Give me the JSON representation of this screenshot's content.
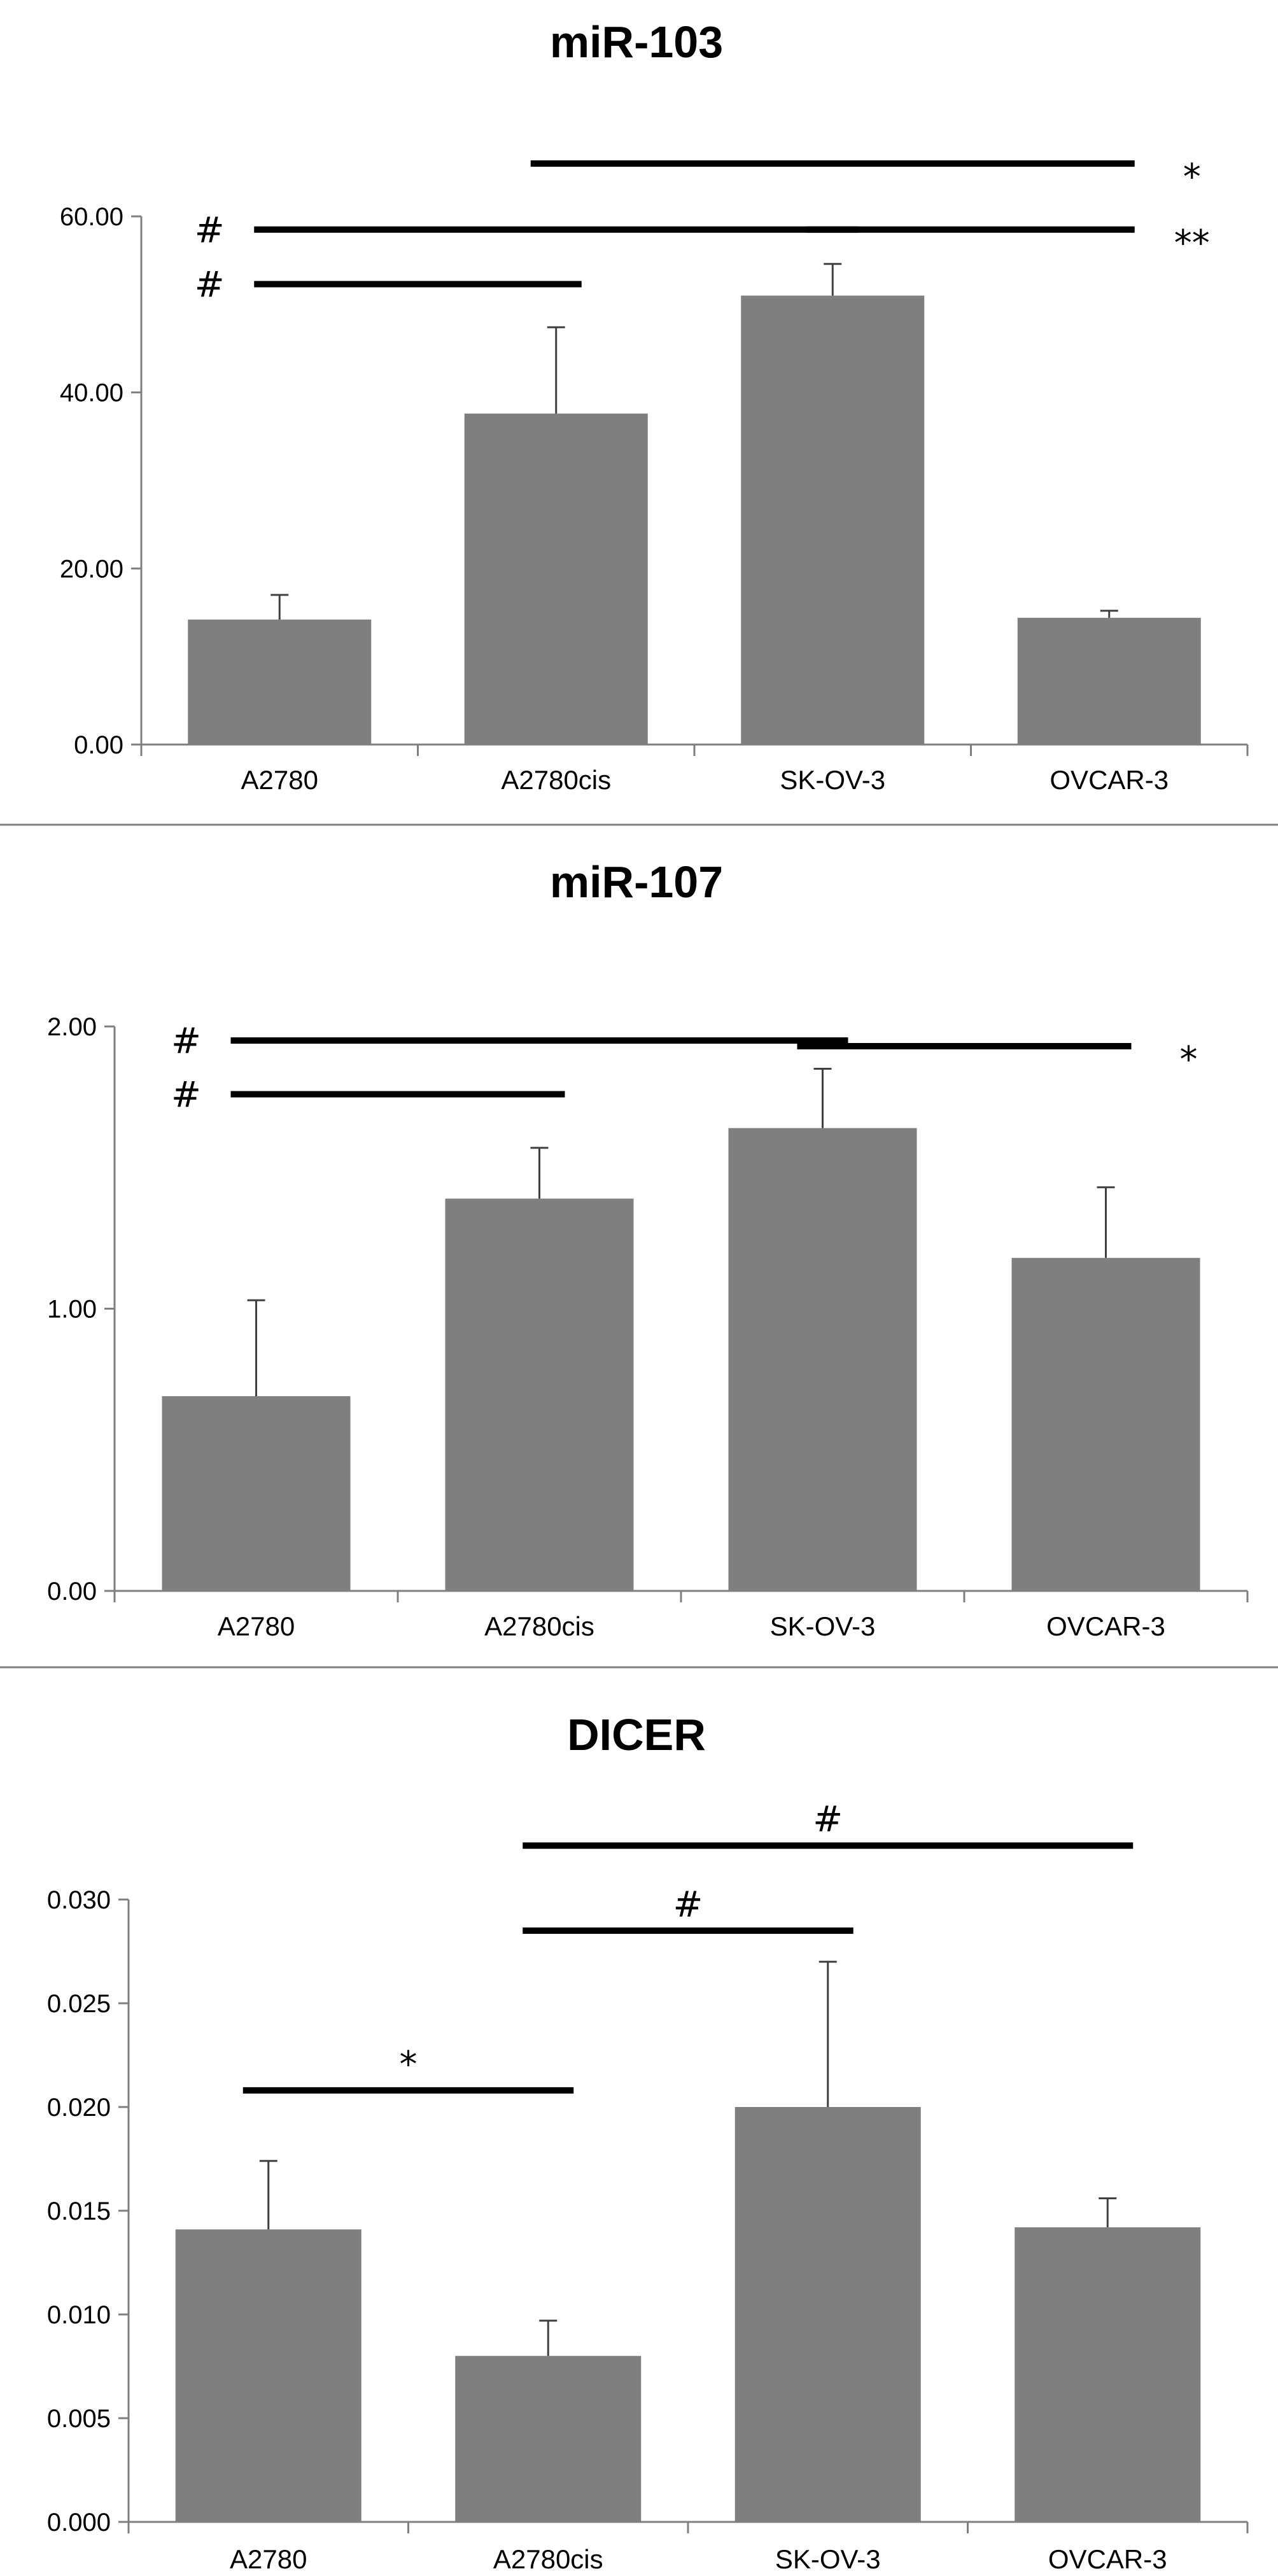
{
  "chart_data": [
    {
      "type": "bar",
      "title": "miR-103",
      "categories": [
        "A2780",
        "A2780cis",
        "SK-OV-3",
        "OVCAR-3"
      ],
      "values": [
        14.2,
        37.6,
        51.0,
        14.4
      ],
      "errors": [
        2.8,
        9.8,
        3.6,
        0.8
      ],
      "ylim": [
        0,
        60
      ],
      "yticks": [
        0,
        20,
        40,
        60
      ],
      "ytick_labels": [
        "0.00",
        "20.00",
        "40.00",
        "60.00"
      ],
      "xlabel": "",
      "ylabel": "",
      "significance": [
        {
          "from": 1,
          "to": 3,
          "level": 66,
          "label": "*",
          "label_side": "right"
        },
        {
          "from": 0,
          "to": 2,
          "level": 58.5,
          "label": "#",
          "label_side": "left"
        },
        {
          "from": 2,
          "to": 3,
          "level": 58.5,
          "label": "**",
          "label_side": "right"
        },
        {
          "from": 0,
          "to": 1,
          "level": 52.3,
          "label": "#",
          "label_side": "left"
        }
      ]
    },
    {
      "type": "bar",
      "title": "miR-107",
      "categories": [
        "A2780",
        "A2780cis",
        "SK-OV-3",
        "OVCAR-3"
      ],
      "values": [
        0.69,
        1.39,
        1.64,
        1.18
      ],
      "errors": [
        0.34,
        0.18,
        0.21,
        0.25
      ],
      "ylim": [
        0,
        2
      ],
      "yticks": [
        0,
        1,
        2
      ],
      "ytick_labels": [
        "0.00",
        "1.00",
        "2.00"
      ],
      "xlabel": "",
      "ylabel": "",
      "significance": [
        {
          "from": 0,
          "to": 2,
          "level": 1.95,
          "label": "#",
          "label_side": "left"
        },
        {
          "from": 2,
          "to": 3,
          "level": 1.93,
          "label": "*",
          "label_side": "right"
        },
        {
          "from": 0,
          "to": 1,
          "level": 1.76,
          "label": "#",
          "label_side": "left"
        }
      ]
    },
    {
      "type": "bar",
      "title": "DICER",
      "categories": [
        "A2780",
        "A2780cis",
        "SK-OV-3",
        "OVCAR-3"
      ],
      "values": [
        0.0141,
        0.008,
        0.02,
        0.0142
      ],
      "errors": [
        0.0033,
        0.0017,
        0.007,
        0.0014
      ],
      "ylim": [
        0,
        0.03
      ],
      "yticks": [
        0,
        0.005,
        0.01,
        0.015,
        0.02,
        0.025,
        0.03
      ],
      "ytick_labels": [
        "0.000",
        "0.005",
        "0.010",
        "0.015",
        "0.020",
        "0.025",
        "0.030"
      ],
      "xlabel": "",
      "ylabel": "",
      "significance": [
        {
          "from": 1,
          "to": 3,
          "level": 0.0326,
          "label": "#",
          "label_side": "top"
        },
        {
          "from": 1,
          "to": 2,
          "level": 0.0285,
          "label": "#",
          "label_side": "top"
        },
        {
          "from": 0,
          "to": 1,
          "level": 0.0208,
          "label": "*",
          "label_side": "top"
        }
      ]
    }
  ]
}
